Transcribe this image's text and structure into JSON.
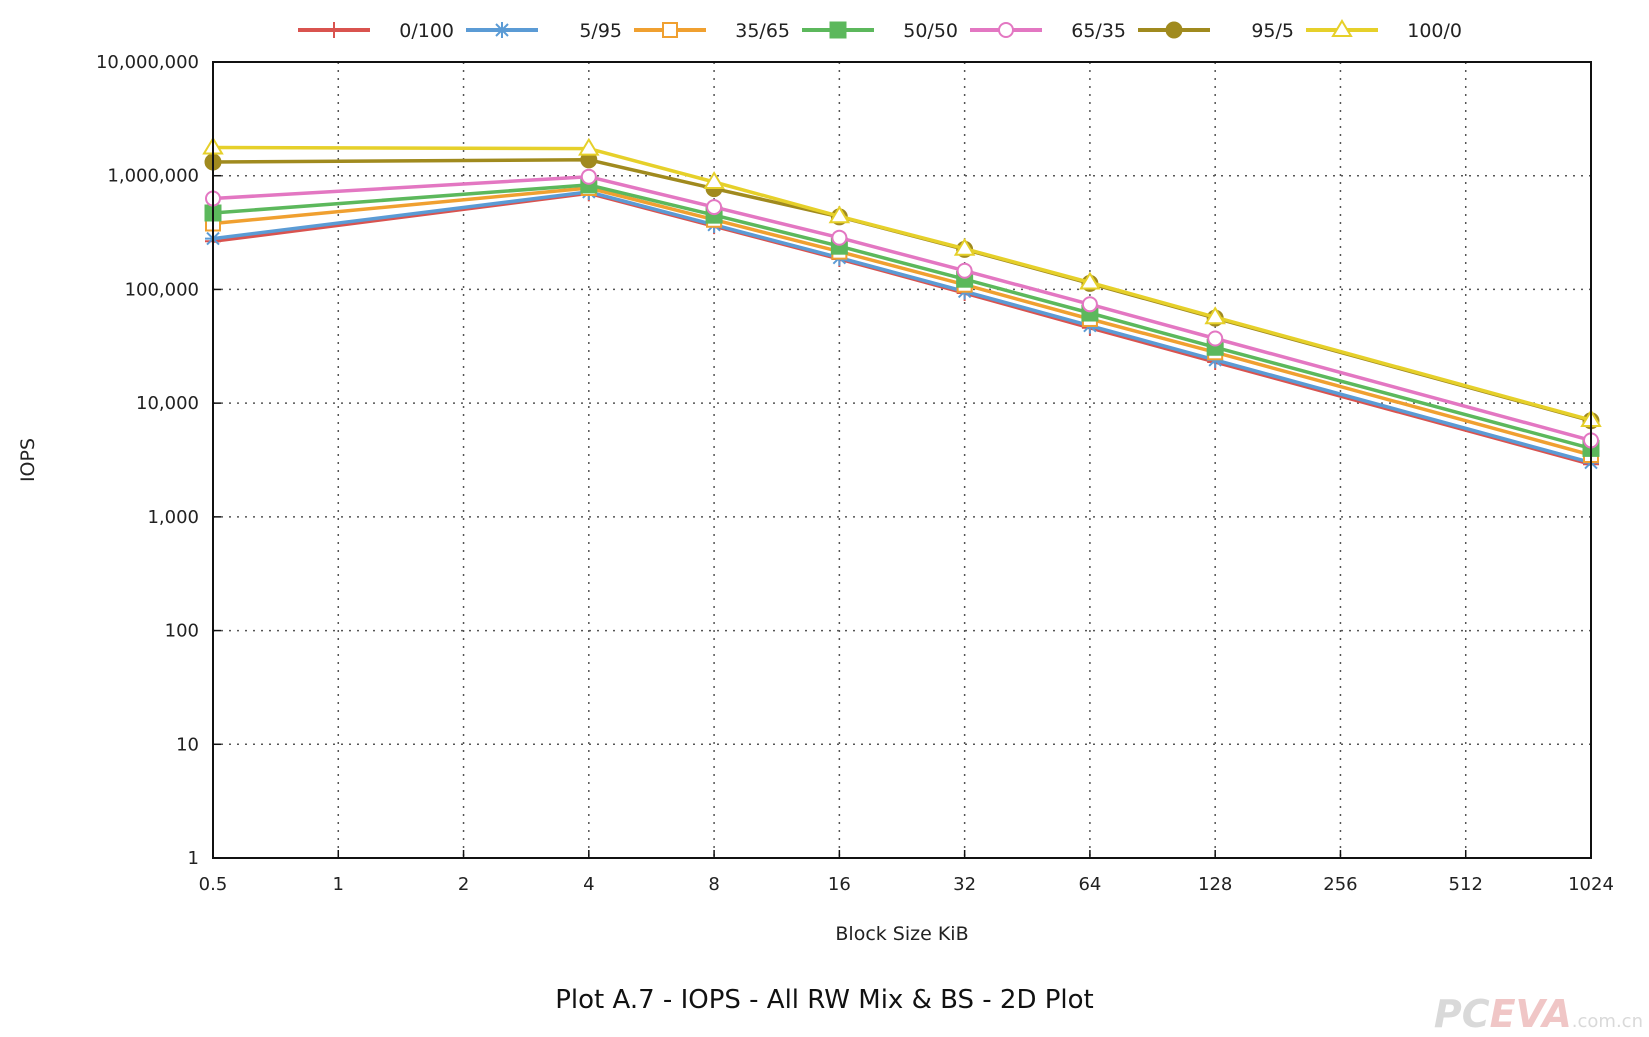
{
  "chart_data": {
    "type": "line",
    "title": "Plot A.7 - IOPS - All RW Mix & BS - 2D Plot",
    "xlabel": "Block Size KiB",
    "ylabel": "IOPS",
    "x_scale": "log2",
    "y_scale": "log10",
    "x": [
      0.5,
      1,
      2,
      4,
      8,
      16,
      32,
      64,
      128,
      256,
      512,
      1024
    ],
    "x_tick_labels": [
      "0.5",
      "1",
      "2",
      "4",
      "8",
      "16",
      "32",
      "64",
      "128",
      "256",
      "512",
      "1024"
    ],
    "y_ticks": [
      1,
      10,
      100,
      1000,
      10000,
      100000,
      1000000,
      10000000
    ],
    "y_tick_labels": [
      "1",
      "10",
      "100",
      "1,000",
      "10,000",
      "100,000",
      "1,000,000",
      "10,000,000"
    ],
    "ylim": [
      1,
      10000000
    ],
    "grid": true,
    "legend_position": "top",
    "series": [
      {
        "name": "0/100",
        "color": "#d9534f",
        "marker": "plus",
        "points": [
          [
            0.5,
            265000
          ],
          [
            4,
            700000
          ],
          [
            8,
            360000
          ],
          [
            16,
            185000
          ],
          [
            32,
            93000
          ],
          [
            64,
            46000
          ],
          [
            128,
            23000
          ],
          [
            1024,
            2900
          ]
        ]
      },
      {
        "name": "5/95",
        "color": "#5b9bd5",
        "marker": "star",
        "points": [
          [
            0.5,
            280000
          ],
          [
            4,
            720000
          ],
          [
            8,
            370000
          ],
          [
            16,
            190000
          ],
          [
            32,
            96000
          ],
          [
            64,
            48000
          ],
          [
            128,
            24000
          ],
          [
            1024,
            3000
          ]
        ]
      },
      {
        "name": "35/65",
        "color": "#f0a030",
        "marker": "open-square",
        "points": [
          [
            0.5,
            380000
          ],
          [
            4,
            780000
          ],
          [
            8,
            410000
          ],
          [
            16,
            215000
          ],
          [
            32,
            110000
          ],
          [
            64,
            55000
          ],
          [
            128,
            28000
          ],
          [
            1024,
            3500
          ]
        ]
      },
      {
        "name": "50/50",
        "color": "#5cb85c",
        "marker": "filled-square",
        "points": [
          [
            0.5,
            470000
          ],
          [
            4,
            830000
          ],
          [
            8,
            450000
          ],
          [
            16,
            240000
          ],
          [
            32,
            123000
          ],
          [
            64,
            62000
          ],
          [
            128,
            31000
          ],
          [
            1024,
            4000
          ]
        ]
      },
      {
        "name": "65/35",
        "color": "#e377c2",
        "marker": "open-circle",
        "points": [
          [
            0.5,
            630000
          ],
          [
            4,
            980000
          ],
          [
            8,
            530000
          ],
          [
            16,
            285000
          ],
          [
            32,
            146000
          ],
          [
            64,
            74000
          ],
          [
            128,
            37000
          ],
          [
            1024,
            4700
          ]
        ]
      },
      {
        "name": "95/5",
        "color": "#a08a1e",
        "marker": "filled-circle",
        "points": [
          [
            0.5,
            1320000
          ],
          [
            4,
            1380000
          ],
          [
            8,
            770000
          ],
          [
            16,
            435000
          ],
          [
            32,
            225000
          ],
          [
            64,
            113000
          ],
          [
            128,
            56000
          ],
          [
            1024,
            7000
          ]
        ]
      },
      {
        "name": "100/0",
        "color": "#e6d02a",
        "marker": "open-triangle",
        "points": [
          [
            0.5,
            1770000
          ],
          [
            4,
            1730000
          ],
          [
            8,
            880000
          ],
          [
            16,
            440000
          ],
          [
            32,
            228000
          ],
          [
            64,
            115000
          ],
          [
            128,
            57000
          ],
          [
            1024,
            7100
          ]
        ]
      }
    ]
  },
  "watermark": {
    "prefix": "PC",
    "highlight": "EVA",
    "domain": ".com.cn"
  }
}
